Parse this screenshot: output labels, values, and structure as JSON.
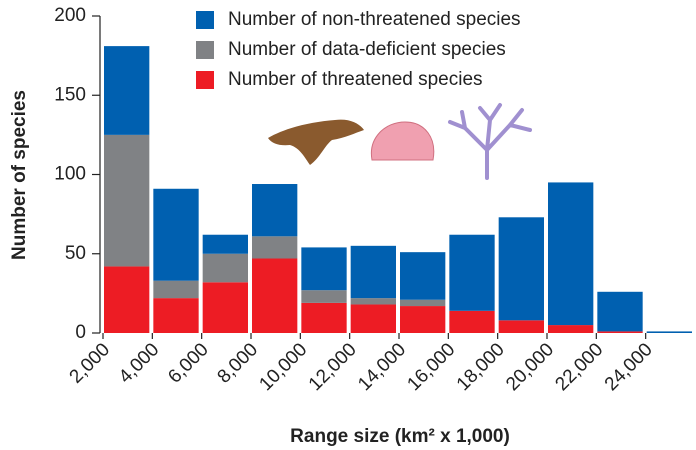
{
  "chart_data": {
    "type": "histogram",
    "xlabel": "Range size (km² x 1,000)",
    "ylabel": "Number of species",
    "bins": [
      2000,
      4000,
      6000,
      8000,
      10000,
      12000,
      14000,
      16000,
      18000,
      20000,
      22000,
      24000,
      26000
    ],
    "series": [
      {
        "name": "Number of threatened species",
        "color": "#ed1c24",
        "values": [
          42,
          22,
          32,
          47,
          19,
          18,
          17,
          14,
          8,
          5,
          1,
          0
        ]
      },
      {
        "name": "Number of data-deficient species",
        "color": "#808285",
        "values": [
          83,
          11,
          18,
          14,
          8,
          4,
          4,
          0,
          0,
          0,
          0,
          0
        ]
      },
      {
        "name": "Number of non-threatened species",
        "color": "#0060b0",
        "values": [
          56,
          58,
          12,
          33,
          27,
          33,
          30,
          48,
          65,
          90,
          25,
          1
        ]
      }
    ],
    "stacked": true,
    "xlim": [
      2000,
      26000
    ],
    "xticks": [
      {
        "value": 2000,
        "label": "2,000"
      },
      {
        "value": 4000,
        "label": "4,000"
      },
      {
        "value": 6000,
        "label": "6,000"
      },
      {
        "value": 8000,
        "label": "8,000"
      },
      {
        "value": 10000,
        "label": "10,000"
      },
      {
        "value": 12000,
        "label": "12,000"
      },
      {
        "value": 14000,
        "label": "14,000"
      },
      {
        "value": 16000,
        "label": "16,000"
      },
      {
        "value": 18000,
        "label": "18,000"
      },
      {
        "value": 20000,
        "label": "20,000"
      },
      {
        "value": 22000,
        "label": "22,000"
      },
      {
        "value": 24000,
        "label": "24,000"
      }
    ],
    "ylim": [
      0,
      200
    ],
    "yticks": [
      0,
      50,
      100,
      150,
      200
    ],
    "grid": false,
    "legend": "top"
  }
}
